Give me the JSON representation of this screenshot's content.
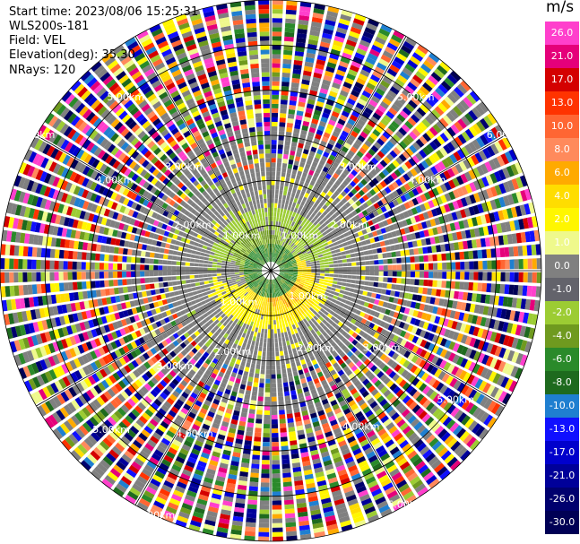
{
  "header": {
    "start_time": "Start time: 2023/08/06 15:25:31",
    "instrument": "WLS200s-181",
    "field": "Field: VEL",
    "elevation": "Elevation(deg): 35.30",
    "nrays": "NRays: 120"
  },
  "chart_data": {
    "type": "heatmap",
    "projection": "polar (PPI scan)",
    "title": "",
    "nrays": 120,
    "range_km_max": 6.0,
    "range_rings_km": [
      1.0,
      2.0,
      3.0,
      4.0,
      5.0,
      6.0
    ],
    "ring_labels": [
      "1.00km",
      "2.00km",
      "3.00km",
      "4.00km",
      "5.00km",
      "6.00km"
    ],
    "spoke_angles_deg": [
      0,
      30,
      60,
      90,
      120,
      150,
      180,
      210,
      240,
      270,
      300,
      330
    ],
    "colorbar": {
      "unit": "m/s",
      "tick_labels": [
        "26.0",
        "21.0",
        "17.0",
        "13.0",
        "10.0",
        "8.0",
        "6.0",
        "4.0",
        "2.0",
        "1.0",
        "0.0",
        "-1.0",
        "-2.0",
        "-4.0",
        "-6.0",
        "-8.0",
        "-10.0",
        "-13.0",
        "-17.0",
        "-21.0",
        "-26.0",
        "-30.0"
      ],
      "colors": [
        "#ff3fcc",
        "#e5007a",
        "#d40000",
        "#ff3300",
        "#ff6633",
        "#ff8a5c",
        "#ffaa00",
        "#ffdd00",
        "#fff600",
        "#eff98c",
        "#808080",
        "#63636b",
        "#9ccc33",
        "#6f9a1f",
        "#2a8a2a",
        "#1e6a1e",
        "#1f7fd0",
        "#1010ff",
        "#0000cc",
        "#000099",
        "#00006e",
        "#000055"
      ]
    },
    "pattern": {
      "near_field": "small dark green core around the instrument",
      "positive_lobe": "yellow/orange velocities to the south-east (~0.5–1.2 km)",
      "negative_lobe": "green velocities to the north-west and north-east (~0.5–1.3 km)",
      "outer_field": "mostly 0.0 grey out to ~2.5 km, noisy multicolour beyond"
    }
  }
}
